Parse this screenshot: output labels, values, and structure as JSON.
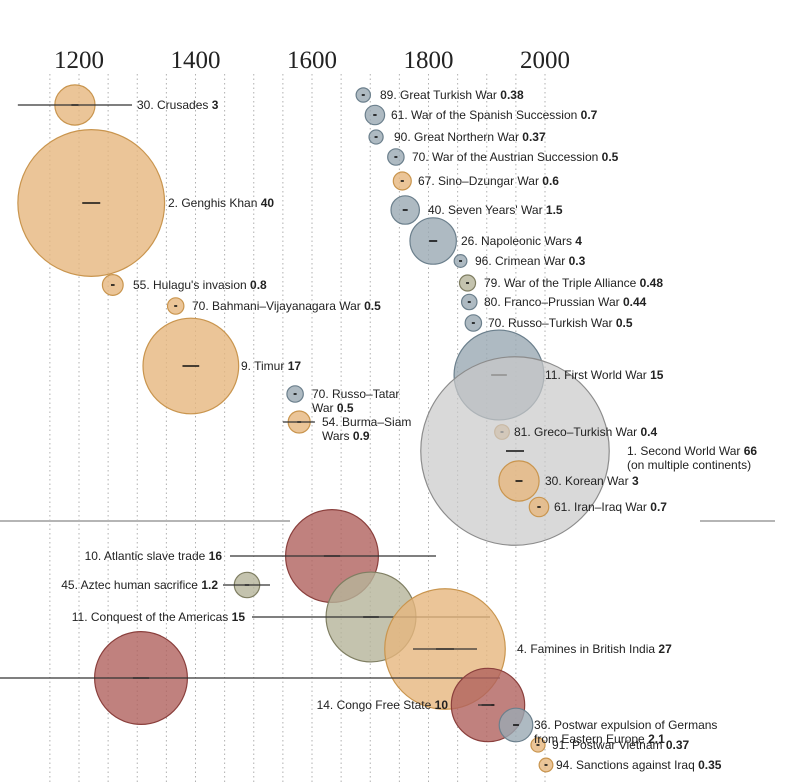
{
  "chart_data": {
    "type": "scatter",
    "title": "",
    "xlabel": "",
    "ylabel": "",
    "x_ticks": [
      1200,
      1400,
      1600,
      1800,
      2000
    ],
    "grid": "vertical dotted lines every 50 years",
    "colors": {
      "asia": "#e6b77e",
      "europe": "#9aa9b3",
      "mixed": "#c9c9c9",
      "olive": "#b5b49a",
      "red": "#b0615e",
      "asia_stroke": "#c9954e",
      "europe_stroke": "#6b7f8c",
      "red_stroke": "#8a3f3c",
      "gray_stroke": "#8c8c8c",
      "olive_stroke": "#7f7e62"
    },
    "wars": [
      {
        "rank": "30.",
        "name": "Crusades",
        "deaths": 3,
        "deaths_label": "3",
        "start": 1095,
        "end": 1291,
        "mid": 1193,
        "color": "asia"
      },
      {
        "rank": "2.",
        "name": "Genghis Khan",
        "deaths": 40,
        "deaths_label": "40",
        "mid": 1221,
        "color": "asia"
      },
      {
        "rank": "55.",
        "name": "Hulagu's invasion",
        "deaths": 0.8,
        "deaths_label": "0.8",
        "mid": 1258,
        "color": "asia"
      },
      {
        "rank": "70.",
        "name": "Bahmani–Vijayanagara War",
        "deaths": 0.5,
        "deaths_label": "0.5",
        "mid": 1366,
        "color": "asia"
      },
      {
        "rank": "9.",
        "name": "Timur",
        "deaths": 17,
        "deaths_label": "17",
        "mid": 1392,
        "color": "asia"
      },
      {
        "rank": "70.",
        "name": "Russo–Tatar",
        "name2": "War",
        "deaths": 0.5,
        "deaths_label": "0.5",
        "mid": 1571,
        "color": "europe"
      },
      {
        "rank": "54.",
        "name": "Burma–Siam",
        "name2": "Wars",
        "deaths": 0.9,
        "deaths_label": "0.9",
        "start": 1550,
        "end": 1605,
        "mid": 1578,
        "color": "asia"
      },
      {
        "rank": "89.",
        "name": "Great Turkish War",
        "deaths": 0.38,
        "deaths_label": "0.38",
        "mid": 1688,
        "color": "europe"
      },
      {
        "rank": "61.",
        "name": "War of the Spanish Succession",
        "deaths": 0.7,
        "deaths_label": "0.7",
        "mid": 1708,
        "color": "europe"
      },
      {
        "rank": "90.",
        "name": "Great Northern War",
        "deaths": 0.37,
        "deaths_label": "0.37",
        "mid": 1710,
        "color": "europe"
      },
      {
        "rank": "70.",
        "name": "War of the Austrian Succession",
        "deaths": 0.5,
        "deaths_label": "0.5",
        "mid": 1744,
        "color": "europe"
      },
      {
        "rank": "67.",
        "name": "Sino–Dzungar War",
        "deaths": 0.6,
        "deaths_label": "0.6",
        "mid": 1755,
        "color": "asia"
      },
      {
        "rank": "40.",
        "name": "Seven Years' War",
        "deaths": 1.5,
        "deaths_label": "1.5",
        "mid": 1760,
        "color": "europe"
      },
      {
        "rank": "26.",
        "name": "Napoleonic Wars",
        "deaths": 4,
        "deaths_label": "4",
        "mid": 1808,
        "color": "europe"
      },
      {
        "rank": "96.",
        "name": "Crimean War",
        "deaths": 0.3,
        "deaths_label": "0.3",
        "mid": 1855,
        "color": "europe"
      },
      {
        "rank": "79.",
        "name": "War of the Triple Alliance",
        "deaths": 0.48,
        "deaths_label": "0.48",
        "mid": 1867,
        "color": "olive"
      },
      {
        "rank": "80.",
        "name": "Franco–Prussian War",
        "deaths": 0.44,
        "deaths_label": "0.44",
        "mid": 1870,
        "color": "europe"
      },
      {
        "rank": "70.",
        "name": "Russo–Turkish War",
        "deaths": 0.5,
        "deaths_label": "0.5",
        "mid": 1877,
        "color": "europe"
      },
      {
        "rank": "11.",
        "name": "First World War",
        "deaths": 15,
        "deaths_label": "15",
        "mid": 1916,
        "color": "europe"
      },
      {
        "rank": "81.",
        "name": "Greco–Turkish War",
        "deaths": 0.4,
        "deaths_label": "0.4",
        "mid": 1921,
        "color": "asia"
      },
      {
        "rank": "1.",
        "name": "Second World War",
        "name2": "(on multiple continents)",
        "deaths": 66,
        "deaths_label": "66",
        "mid": 1942,
        "color": "mixed"
      },
      {
        "rank": "30.",
        "name": "Korean War",
        "deaths": 3,
        "deaths_label": "3",
        "mid": 1951,
        "color": "asia"
      },
      {
        "rank": "61.",
        "name": "Iran–Iraq War",
        "deaths": 0.7,
        "deaths_label": "0.7",
        "mid": 1984,
        "color": "asia"
      }
    ],
    "other_events": [
      {
        "rank": "10.",
        "name": "Atlantic slave trade",
        "deaths": 16,
        "deaths_label": "16",
        "start": 1452,
        "end": 1807,
        "mid": 1600,
        "color": "red"
      },
      {
        "rank": "45.",
        "name": "Aztec human sacrifice",
        "deaths": 1.2,
        "deaths_label": "1.2",
        "start": 1440,
        "end": 1521,
        "mid": 1480,
        "color": "olive"
      },
      {
        "rank": "11.",
        "name": "Conquest of the Americas",
        "deaths": 15,
        "deaths_label": "15",
        "start": 1492,
        "end": 1900,
        "mid": 1695,
        "color": "olive"
      },
      {
        "rank": "4.",
        "name": "Famines in British India",
        "deaths": 27,
        "deaths_label": "27",
        "start": 1769,
        "end": 1900,
        "mid": 1834,
        "color": "asia"
      },
      {
        "rank": "",
        "name": "",
        "deaths": 16,
        "deaths_label": "",
        "start": 1000,
        "end": 1900,
        "mid": 1305,
        "color": "red"
      },
      {
        "rank": "14.",
        "name": "Congo Free State",
        "deaths": 10,
        "deaths_label": "10",
        "start": 1885,
        "end": 1908,
        "mid": 1898,
        "color": "red"
      },
      {
        "rank": "36.",
        "name": "Postwar expulsion of Germans",
        "name2": "from Eastern Europe",
        "deaths": 2.1,
        "deaths_label": "2.1",
        "mid": 1946,
        "color": "europe"
      },
      {
        "rank": "91.",
        "name": "Postwar Vietnam",
        "deaths": 0.37,
        "deaths_label": "0.37",
        "mid": 1975,
        "color": "asia"
      },
      {
        "rank": "94.",
        "name": "Sanctions against Iraq",
        "deaths": 0.35,
        "deaths_label": "0.35",
        "mid": 1995,
        "color": "asia"
      }
    ]
  }
}
